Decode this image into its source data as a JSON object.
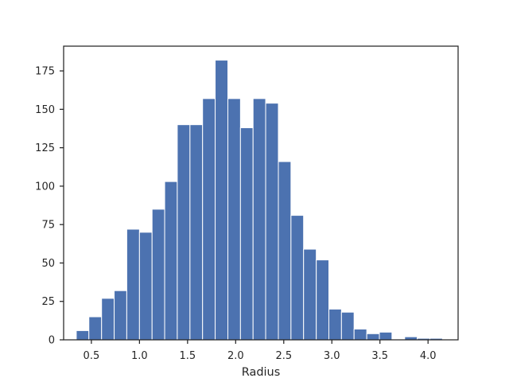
{
  "chart_data": {
    "type": "bar",
    "title": "",
    "xlabel": "Radius",
    "ylabel": "",
    "xlim": [
      0.2115,
      4.3125
    ],
    "ylim": [
      0,
      191.1
    ],
    "grid": false,
    "bar_color": "#4c72b0",
    "bin_edges": [
      0.343,
      0.474,
      0.606,
      0.737,
      0.868,
      1.0,
      1.131,
      1.262,
      1.393,
      1.525,
      1.656,
      1.787,
      1.919,
      2.05,
      2.181,
      2.312,
      2.444,
      2.575,
      2.706,
      2.838,
      2.969,
      3.1,
      3.231,
      3.363,
      3.494,
      3.625,
      3.757,
      3.888,
      4.019,
      4.15
    ],
    "counts": [
      6,
      15,
      27,
      32,
      72,
      70,
      85,
      103,
      140,
      140,
      157,
      182,
      157,
      138,
      157,
      154,
      116,
      81,
      59,
      52,
      20,
      18,
      7,
      4,
      5,
      0,
      2,
      1,
      1
    ],
    "x_ticks": [
      0.5,
      1.0,
      1.5,
      2.0,
      2.5,
      3.0,
      3.5,
      4.0
    ],
    "x_tick_labels": [
      "0.5",
      "1.0",
      "1.5",
      "2.0",
      "2.5",
      "3.0",
      "3.5",
      "4.0"
    ],
    "y_ticks": [
      0,
      25,
      50,
      75,
      100,
      125,
      150,
      175
    ],
    "y_tick_labels": [
      "0",
      "25",
      "50",
      "75",
      "100",
      "125",
      "150",
      "175"
    ]
  }
}
